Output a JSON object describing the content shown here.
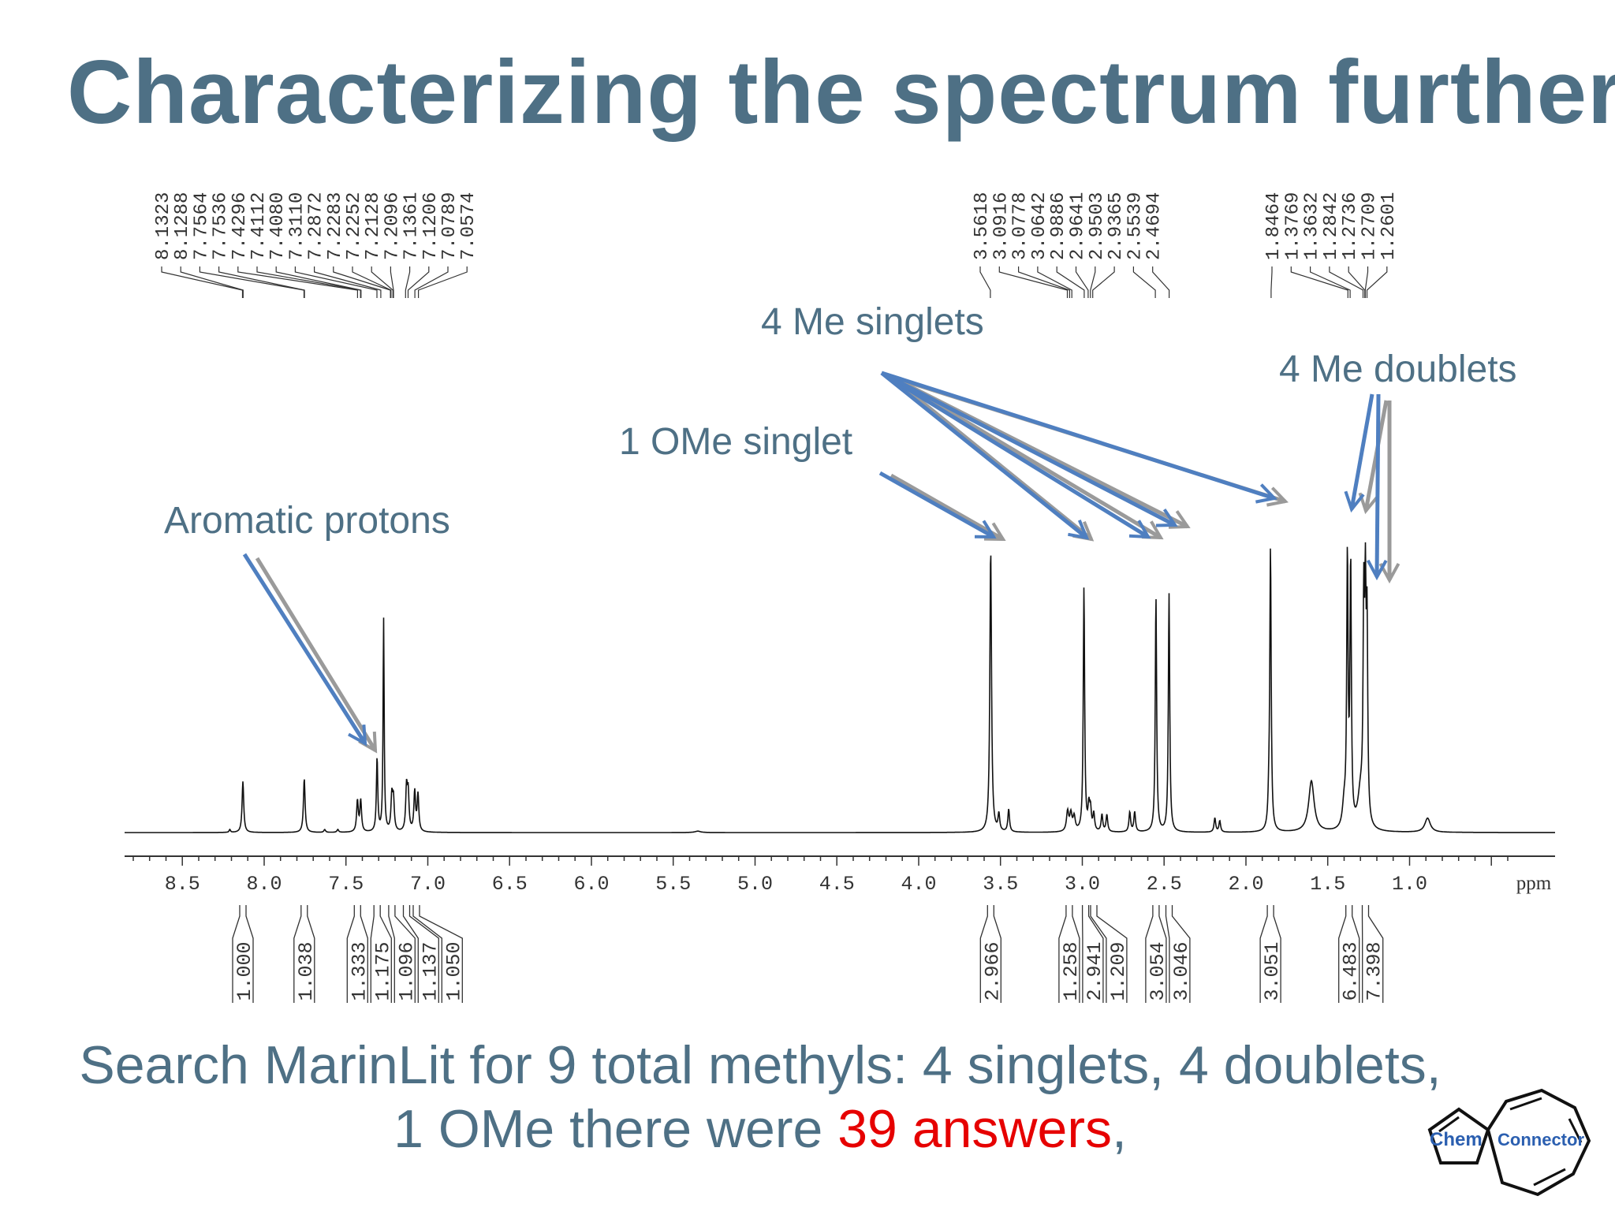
{
  "title": "Characterizing the spectrum further",
  "annotations": {
    "aromatic": "Aromatic protons",
    "ome": "1 OMe singlet",
    "me_singlets": "4 Me singlets",
    "me_doublets": "4 Me doublets"
  },
  "footer": {
    "line1": "Search MarinLit for 9 total methyls: 4 singlets, 4 doublets,",
    "line2_prefix": "1 OMe there were ",
    "line2_highlight": "39 answers",
    "line2_suffix": ","
  },
  "logo": {
    "left_text": "Chem",
    "right_text": "Connector"
  },
  "colors": {
    "title": "#4e7085",
    "arrow_blue": "#4f7fc0",
    "arrow_gray": "#9a9a9a",
    "highlight": "#e60000"
  },
  "chart_data": {
    "type": "line",
    "xlabel": "ppm",
    "x_reversed": true,
    "xlim": [
      8.85,
      0.3
    ],
    "x_ticks": [
      "8.5",
      "8.0",
      "7.5",
      "7.0",
      "6.5",
      "6.0",
      "5.5",
      "5.0",
      "4.5",
      "4.0",
      "3.5",
      "3.0",
      "2.5",
      "2.0",
      "1.5",
      "1.0"
    ],
    "peak_labels": {
      "aromatic": [
        "8.1323",
        "8.1288",
        "7.7564",
        "7.7536",
        "7.4296",
        "7.4112",
        "7.4080",
        "7.3110",
        "7.2872",
        "7.2283",
        "7.2252",
        "7.2128",
        "7.2096",
        "7.1361",
        "7.1206",
        "7.0789",
        "7.0574"
      ],
      "mid": [
        "3.5618",
        "3.0916",
        "3.0778",
        "3.0642",
        "2.9886",
        "2.9641",
        "2.9503",
        "2.9365",
        "2.5539",
        "2.4694"
      ],
      "upfield": [
        "1.8464",
        "1.3769",
        "1.3632",
        "1.2842",
        "1.2736",
        "1.2709",
        "1.2601"
      ]
    },
    "integrals": [
      {
        "ppm": 8.13,
        "value": "1.000"
      },
      {
        "ppm": 7.755,
        "value": "1.038"
      },
      {
        "ppm": 7.43,
        "value": "1.333"
      },
      {
        "ppm": 7.31,
        "value": "1.175"
      },
      {
        "ppm": 7.22,
        "value": "1.096"
      },
      {
        "ppm": 7.13,
        "value": "1.137"
      },
      {
        "ppm": 7.07,
        "value": "1.050"
      },
      {
        "ppm": 3.56,
        "value": "2.966"
      },
      {
        "ppm": 3.08,
        "value": "1.258"
      },
      {
        "ppm": 2.98,
        "value": "2.941"
      },
      {
        "ppm": 2.93,
        "value": "1.209"
      },
      {
        "ppm": 2.55,
        "value": "3.054"
      },
      {
        "ppm": 2.47,
        "value": "3.046"
      },
      {
        "ppm": 1.85,
        "value": "3.051"
      },
      {
        "ppm": 1.37,
        "value": "6.483"
      },
      {
        "ppm": 1.27,
        "value": "7.398"
      }
    ],
    "peaks": [
      {
        "ppm": 8.13,
        "height": 0.18,
        "width": 0.006
      },
      {
        "ppm": 8.21,
        "height": 0.01,
        "width": 0.005
      },
      {
        "ppm": 7.755,
        "height": 0.19,
        "width": 0.006
      },
      {
        "ppm": 7.63,
        "height": 0.01,
        "width": 0.006
      },
      {
        "ppm": 7.55,
        "height": 0.01,
        "width": 0.006
      },
      {
        "ppm": 7.43,
        "height": 0.11,
        "width": 0.006
      },
      {
        "ppm": 7.41,
        "height": 0.11,
        "width": 0.006
      },
      {
        "ppm": 7.31,
        "height": 0.26,
        "width": 0.005
      },
      {
        "ppm": 7.27,
        "height": 0.75,
        "width": 0.004
      },
      {
        "ppm": 7.22,
        "height": 0.12,
        "width": 0.006
      },
      {
        "ppm": 7.21,
        "height": 0.11,
        "width": 0.006
      },
      {
        "ppm": 7.13,
        "height": 0.15,
        "width": 0.006
      },
      {
        "ppm": 7.12,
        "height": 0.13,
        "width": 0.006
      },
      {
        "ppm": 7.08,
        "height": 0.14,
        "width": 0.006
      },
      {
        "ppm": 7.06,
        "height": 0.13,
        "width": 0.006
      },
      {
        "ppm": 5.35,
        "height": 0.005,
        "width": 0.02
      },
      {
        "ppm": 3.56,
        "height": 1.0,
        "width": 0.006
      },
      {
        "ppm": 3.51,
        "height": 0.06,
        "width": 0.006
      },
      {
        "ppm": 3.45,
        "height": 0.08,
        "width": 0.006
      },
      {
        "ppm": 3.09,
        "height": 0.07,
        "width": 0.008
      },
      {
        "ppm": 3.07,
        "height": 0.06,
        "width": 0.008
      },
      {
        "ppm": 3.05,
        "height": 0.05,
        "width": 0.008
      },
      {
        "ppm": 2.99,
        "height": 0.86,
        "width": 0.005
      },
      {
        "ppm": 2.96,
        "height": 0.08,
        "width": 0.006
      },
      {
        "ppm": 2.95,
        "height": 0.07,
        "width": 0.006
      },
      {
        "ppm": 2.93,
        "height": 0.06,
        "width": 0.006
      },
      {
        "ppm": 2.88,
        "height": 0.06,
        "width": 0.006
      },
      {
        "ppm": 2.85,
        "height": 0.06,
        "width": 0.006
      },
      {
        "ppm": 2.71,
        "height": 0.07,
        "width": 0.006
      },
      {
        "ppm": 2.68,
        "height": 0.07,
        "width": 0.006
      },
      {
        "ppm": 2.55,
        "height": 0.83,
        "width": 0.005
      },
      {
        "ppm": 2.47,
        "height": 0.84,
        "width": 0.005
      },
      {
        "ppm": 2.19,
        "height": 0.05,
        "width": 0.006
      },
      {
        "ppm": 2.16,
        "height": 0.04,
        "width": 0.006
      },
      {
        "ppm": 1.86,
        "height": 0.08,
        "width": 0.006
      },
      {
        "ppm": 1.85,
        "height": 0.99,
        "width": 0.005
      },
      {
        "ppm": 1.6,
        "height": 0.18,
        "width": 0.02
      },
      {
        "ppm": 1.38,
        "height": 0.94,
        "width": 0.005
      },
      {
        "ppm": 1.36,
        "height": 0.92,
        "width": 0.005
      },
      {
        "ppm": 1.28,
        "height": 0.7,
        "width": 0.005
      },
      {
        "ppm": 1.27,
        "height": 0.71,
        "width": 0.005
      },
      {
        "ppm": 1.26,
        "height": 0.65,
        "width": 0.005
      },
      {
        "ppm": 1.4,
        "height": 0.08,
        "width": 0.012
      },
      {
        "ppm": 1.3,
        "height": 0.12,
        "width": 0.02
      },
      {
        "ppm": 0.89,
        "height": 0.05,
        "width": 0.02
      }
    ]
  }
}
